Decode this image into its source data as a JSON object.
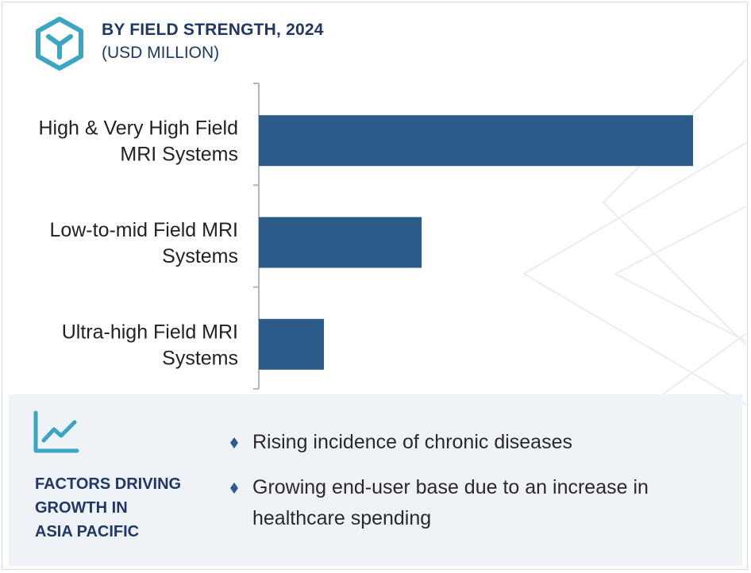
{
  "header": {
    "title": "BY FIELD STRENGTH, 2024",
    "subtitle": "(USD MILLION)"
  },
  "chart_data": {
    "type": "bar",
    "orientation": "horizontal",
    "title": "BY FIELD STRENGTH, 2024",
    "subtitle": "(USD MILLION)",
    "categories": [
      [
        "High & Very High Field",
        "MRI Systems"
      ],
      [
        "Low-to-mid Field MRI",
        "Systems"
      ],
      [
        "Ultra-high Field MRI",
        "Systems"
      ]
    ],
    "values": [
      100,
      37.5,
      15
    ],
    "xlim": [
      0,
      100
    ],
    "bar_color": "#2e5c8a",
    "grid": false,
    "legend": "none",
    "value_axis_labels": false
  },
  "factors": {
    "title": "FACTORS DRIVING\nGROWTH IN\nASIA PACIFIC",
    "items": [
      "Rising incidence of chronic diseases",
      "Growing end-user base due to an increase in healthcare spending"
    ]
  },
  "colors": {
    "accent": "#2e5c8a",
    "heading": "#1f3864",
    "icon": "#3aa6c4",
    "panel_bg": "#eff2f7"
  },
  "icons": {
    "logo": "y-hexagon-logo-icon",
    "growth": "line-chart-growth-icon",
    "bullet": "diamond-bullet-icon"
  }
}
